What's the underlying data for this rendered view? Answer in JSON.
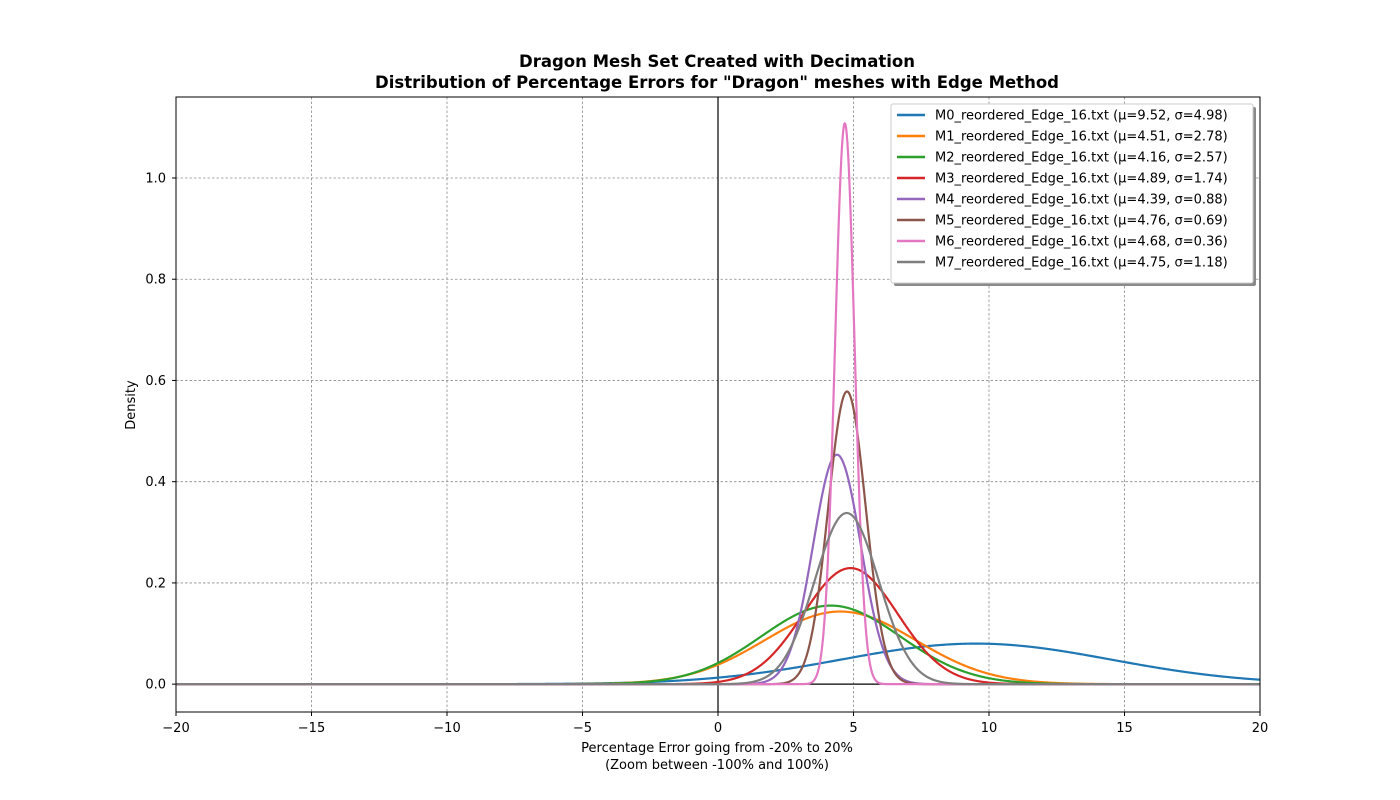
{
  "chart_data": {
    "type": "line",
    "title": "Dragon Mesh Set Created with Decimation",
    "subtitle": "Distribution of Percentage Errors for \"Dragon\" meshes with Edge Method",
    "xlabel": "Percentage Error going from -20% to 20%",
    "xlabel_note": "(Zoom between -100% and 100%)",
    "ylabel": "Density",
    "xlim": [
      -20,
      20
    ],
    "ylim": [
      -0.055,
      1.16
    ],
    "x_ticks": [
      -20,
      -15,
      -10,
      -5,
      0,
      5,
      10,
      15,
      20
    ],
    "x_tick_labels": [
      "−20",
      "−15",
      "−10",
      "−5",
      "0",
      "5",
      "10",
      "15",
      "20"
    ],
    "y_ticks": [
      0.0,
      0.2,
      0.4,
      0.6,
      0.8,
      1.0
    ],
    "y_tick_labels": [
      "0.0",
      "0.2",
      "0.4",
      "0.6",
      "0.8",
      "1.0"
    ],
    "grid": true,
    "legend_position": "top-right",
    "reference_lines": {
      "vertical_x": 0,
      "horizontal_y": 0
    },
    "curve": "normal density, x from -20 to 20",
    "series": [
      {
        "name": "M0_reordered_Edge_16.txt (μ=9.52, σ=4.98)",
        "mu": 9.52,
        "sigma": 4.98,
        "color": "#1f77b4"
      },
      {
        "name": "M1_reordered_Edge_16.txt (μ=4.51, σ=2.78)",
        "mu": 4.51,
        "sigma": 2.78,
        "color": "#ff7f0e"
      },
      {
        "name": "M2_reordered_Edge_16.txt (μ=4.16, σ=2.57)",
        "mu": 4.16,
        "sigma": 2.57,
        "color": "#2ca02c"
      },
      {
        "name": "M3_reordered_Edge_16.txt (μ=4.89, σ=1.74)",
        "mu": 4.89,
        "sigma": 1.74,
        "color": "#d62728"
      },
      {
        "name": "M4_reordered_Edge_16.txt (μ=4.39, σ=0.88)",
        "mu": 4.39,
        "sigma": 0.88,
        "color": "#9467bd"
      },
      {
        "name": "M5_reordered_Edge_16.txt (μ=4.76, σ=0.69)",
        "mu": 4.76,
        "sigma": 0.69,
        "color": "#8c564b"
      },
      {
        "name": "M6_reordered_Edge_16.txt (μ=4.68, σ=0.36)",
        "mu": 4.68,
        "sigma": 0.36,
        "color": "#e377c2"
      },
      {
        "name": "M7_reordered_Edge_16.txt (μ=4.75, σ=1.18)",
        "mu": 4.75,
        "sigma": 1.18,
        "color": "#7f7f7f"
      }
    ]
  }
}
